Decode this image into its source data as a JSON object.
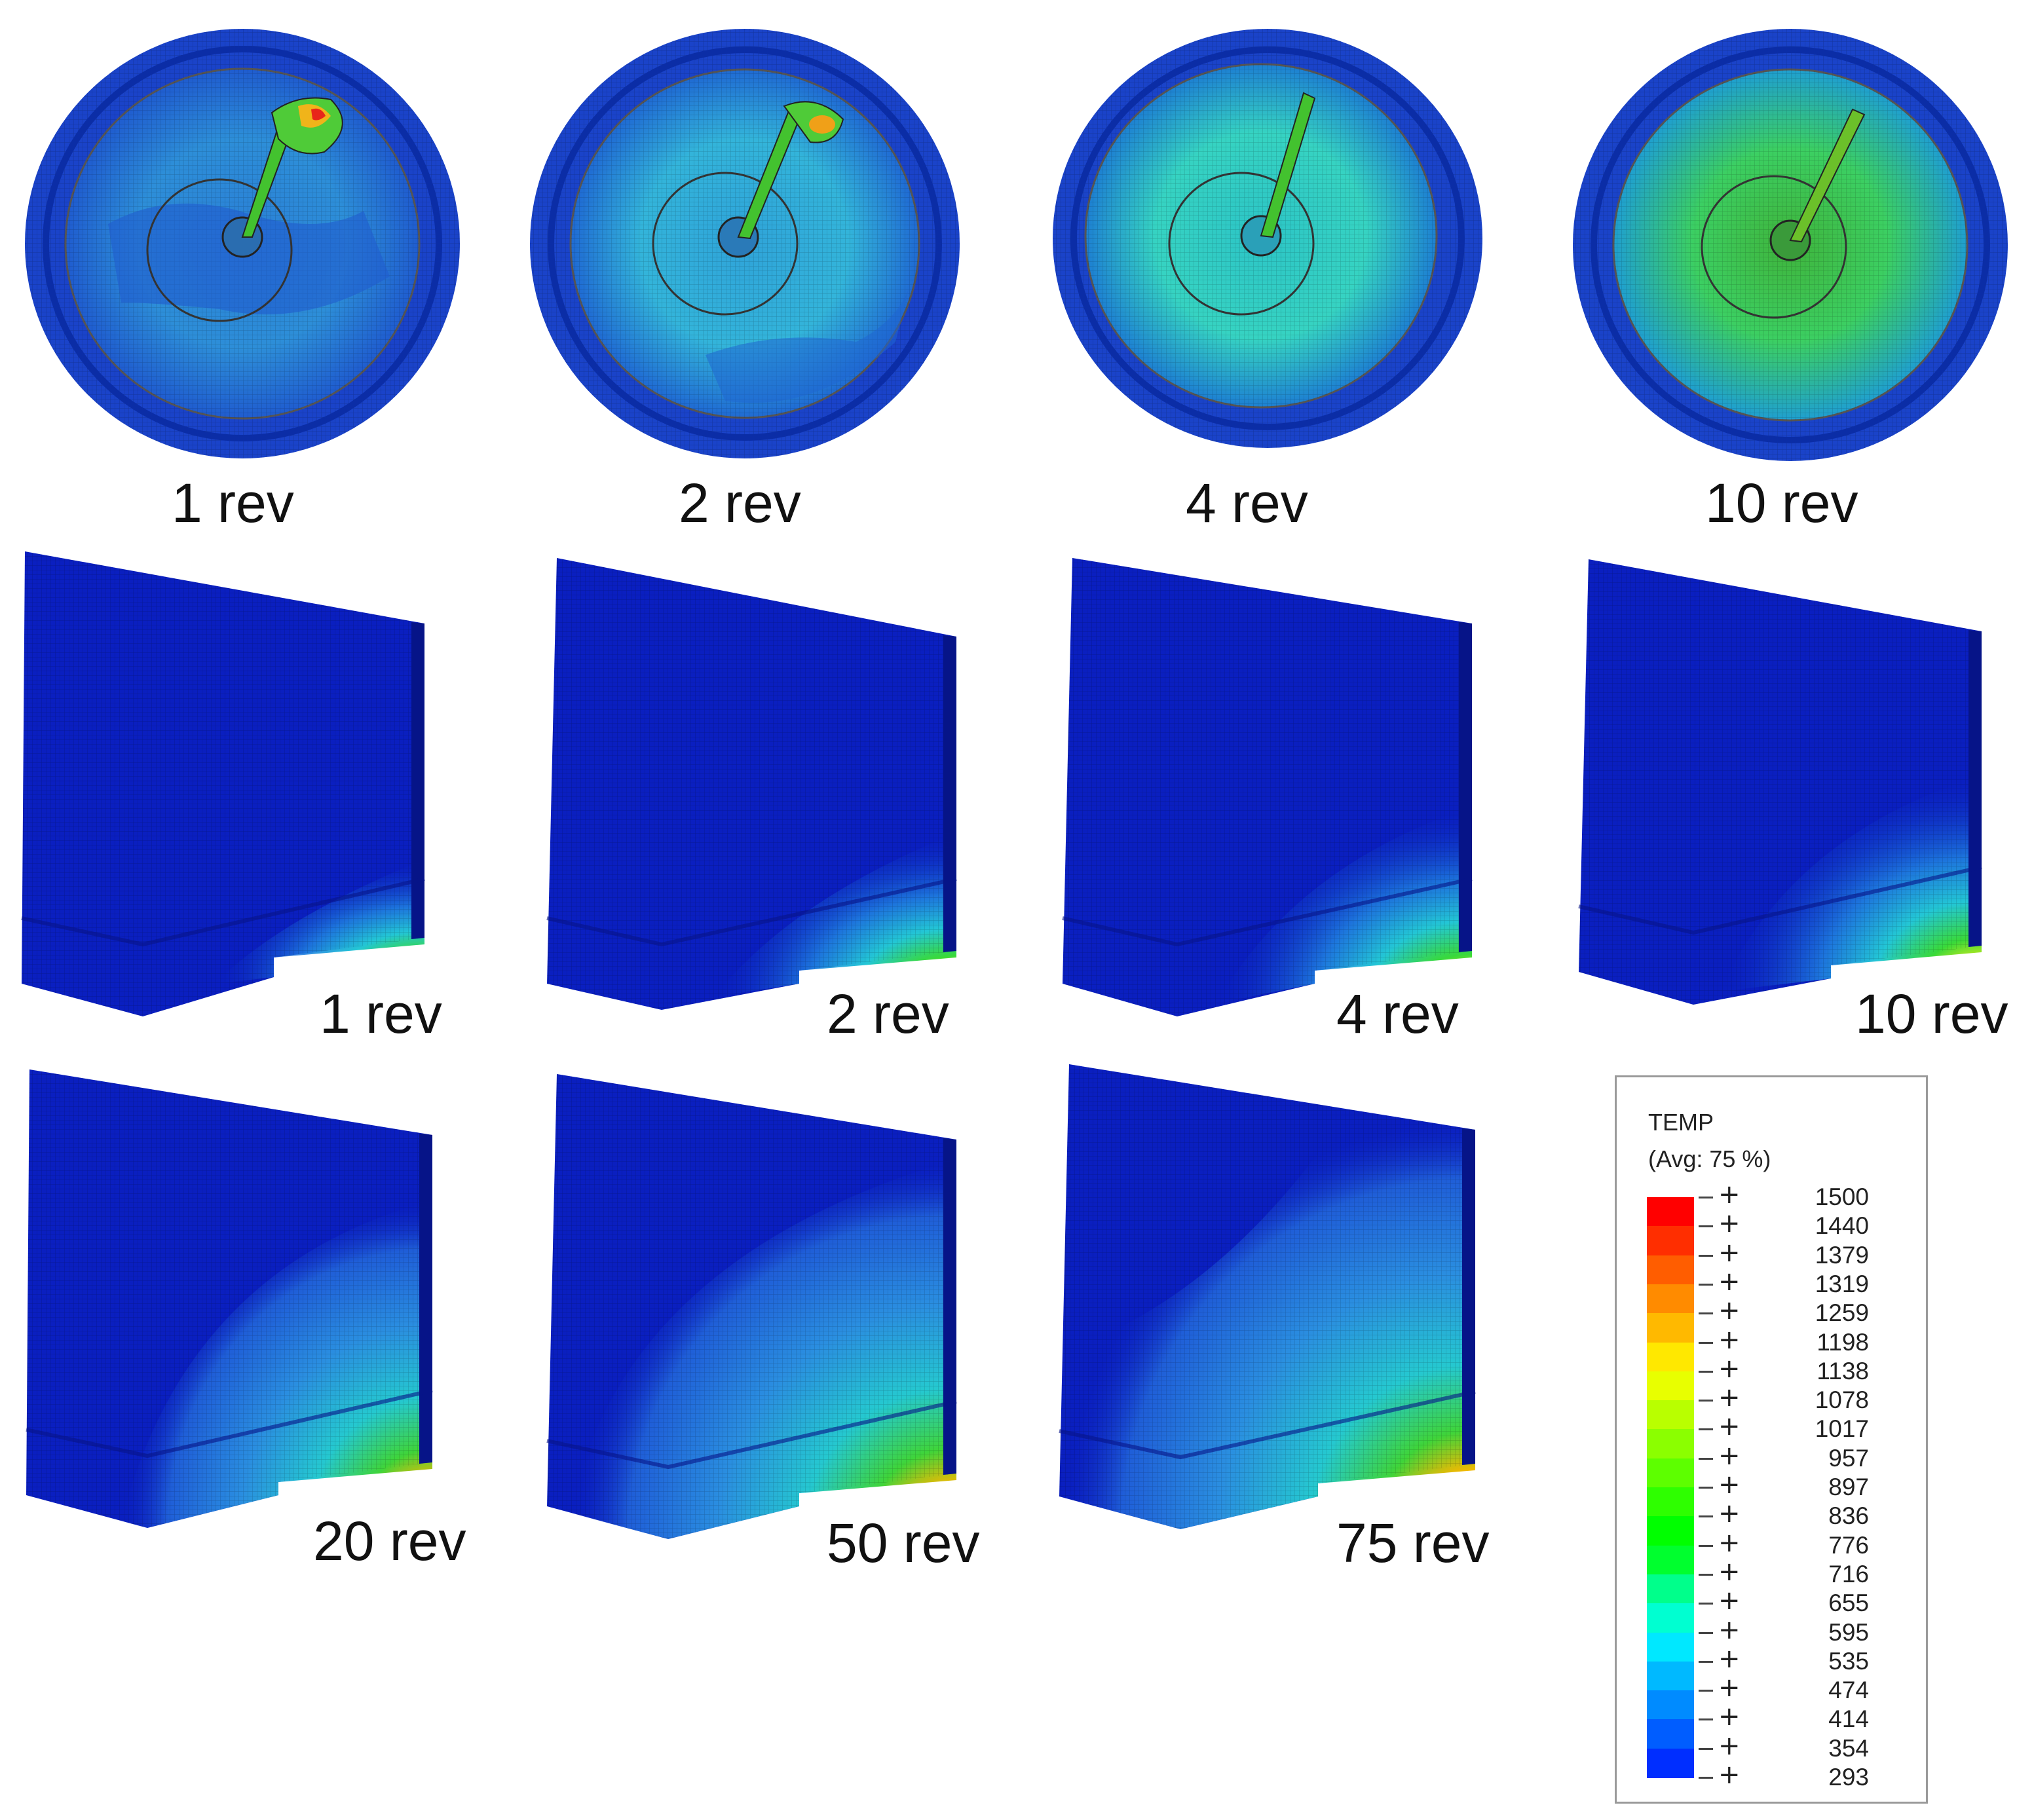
{
  "rows": {
    "disc_captions": [
      "1 rev",
      "2 rev",
      "4 rev",
      "10 rev"
    ],
    "section_row1_captions": [
      "1 rev",
      "2 rev",
      "4 rev",
      "10 rev"
    ],
    "section_row2_captions": [
      "20 rev",
      "50 rev",
      "75 rev"
    ]
  },
  "legend": {
    "title": "TEMP",
    "subtitle": "(Avg: 75 %)",
    "values": [
      "1500",
      "1440",
      "1379",
      "1319",
      "1259",
      "1198",
      "1138",
      "1078",
      "1017",
      "957",
      "897",
      "836",
      "776",
      "716",
      "655",
      "595",
      "535",
      "474",
      "414",
      "354",
      "293"
    ],
    "colors": [
      "#ff0000",
      "#ff2e00",
      "#ff5d00",
      "#ff8b00",
      "#ffb900",
      "#ffe800",
      "#e8ff00",
      "#b9ff00",
      "#8bff00",
      "#5dff00",
      "#2eff00",
      "#00ff00",
      "#00ff2e",
      "#00ff8b",
      "#00ffd1",
      "#00e8ff",
      "#00b9ff",
      "#008bff",
      "#005dff",
      "#002eff",
      "#0000ff"
    ]
  },
  "colors": {
    "deep_blue": "#0a1fc0",
    "mid_blue": "#1a52d9",
    "light_blue": "#3aa0dd",
    "hot_red": "#e8261a"
  }
}
